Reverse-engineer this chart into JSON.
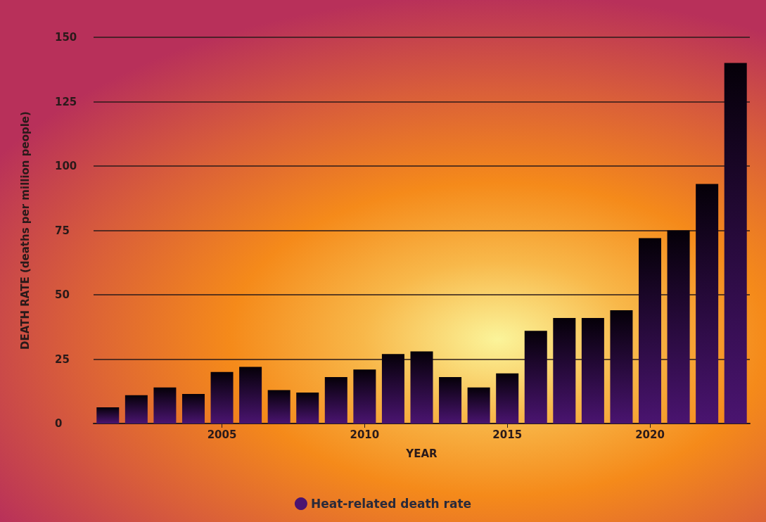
{
  "chart_data": {
    "type": "bar",
    "xlabel": "YEAR",
    "ylabel": "DEATH RATE (deaths per million people)",
    "x": [
      2001,
      2002,
      2003,
      2004,
      2005,
      2006,
      2007,
      2008,
      2009,
      2010,
      2011,
      2012,
      2013,
      2014,
      2015,
      2016,
      2017,
      2018,
      2019,
      2020,
      2021,
      2022,
      2023
    ],
    "series": [
      {
        "name": "Heat-related death rate",
        "color": "#4a1470",
        "values": [
          6.3,
          11,
          14,
          11.5,
          20,
          22,
          13,
          12,
          18,
          21,
          27,
          28,
          18,
          14,
          19.5,
          36,
          41,
          41,
          44,
          72,
          75,
          93,
          140
        ]
      }
    ],
    "xlim": [
      2000.5,
      2023.5
    ],
    "xticks": [
      2005,
      2010,
      2015,
      2020
    ],
    "ylim": [
      0,
      150
    ],
    "yticks": [
      0,
      25,
      50,
      75,
      100,
      125,
      150
    ],
    "grid": "y",
    "legend": "bottom",
    "marker": "circle"
  }
}
